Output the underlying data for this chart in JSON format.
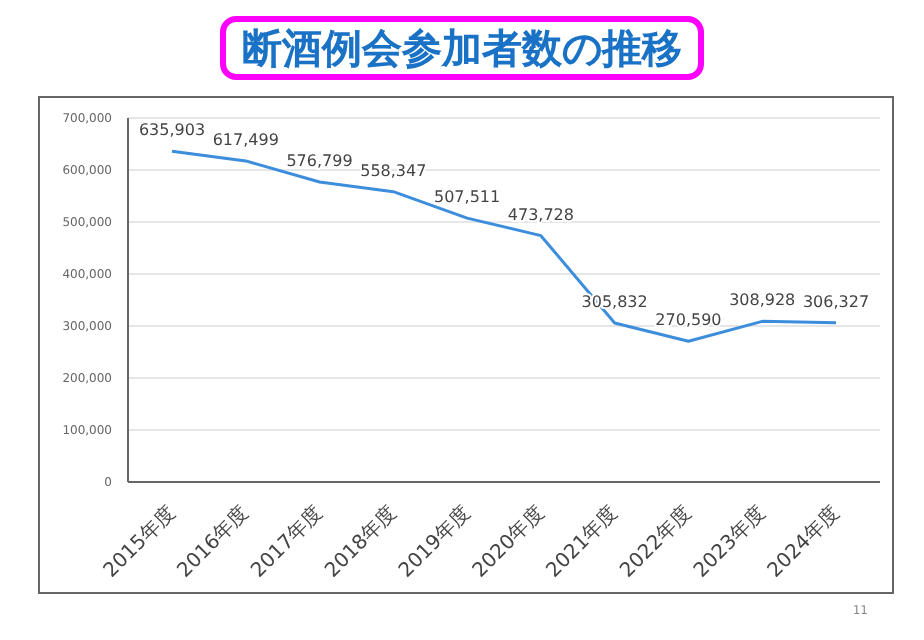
{
  "chart_data": {
    "type": "line",
    "title": "断酒例会参加者数の推移",
    "categories": [
      "2015年度",
      "2016年度",
      "2017年度",
      "2018年度",
      "2019年度",
      "2020年度",
      "2021年度",
      "2022年度",
      "2023年度",
      "2024年度"
    ],
    "series": [
      {
        "color": "#3c8ddc",
        "values": [
          635903,
          617499,
          576799,
          558347,
          507511,
          473728,
          305832,
          270590,
          308928,
          306327
        ],
        "value_labels": [
          "635,903",
          "617,499",
          "576,799",
          "558,347",
          "507,511",
          "473,728",
          "305,832",
          "270,590",
          "308,928",
          "306,327"
        ]
      }
    ],
    "ylim": [
      0,
      700000
    ],
    "yticks": [
      0,
      {
        "value": 100000,
        "label": "100,000"
      },
      {
        "value": 200000,
        "label": "200,000"
      },
      {
        "value": 300000,
        "label": "300,000"
      },
      {
        "value": 400000,
        "label": "400,000"
      },
      {
        "value": 500000,
        "label": "500,000"
      },
      {
        "value": 600000,
        "label": "600,000"
      },
      {
        "value": 700000,
        "label": "700,000"
      }
    ],
    "grid": "y",
    "legend": false,
    "marker": "none",
    "line_style": "solid",
    "annotations": [
      "11"
    ]
  }
}
